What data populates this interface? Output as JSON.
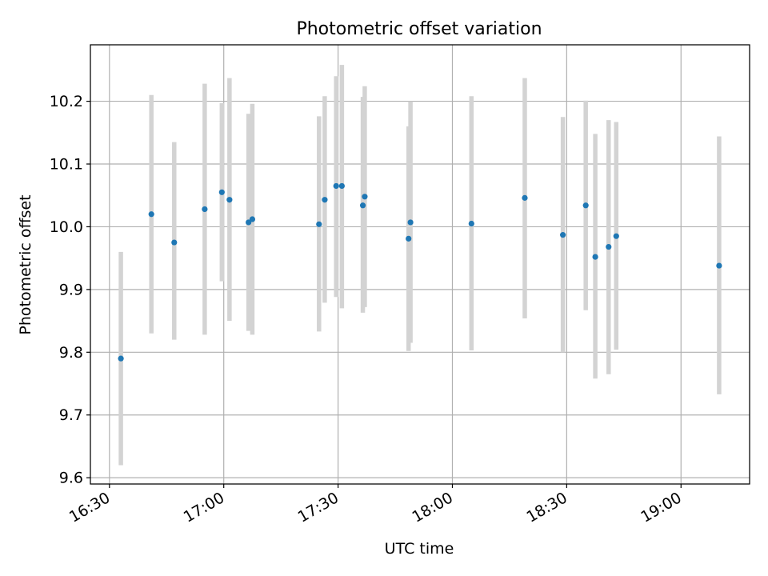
{
  "chart_data": {
    "type": "scatter",
    "title": "Photometric offset variation",
    "xlabel": "UTC time",
    "ylabel": "Photometric offset",
    "xlim": [
      "16:25",
      "19:18"
    ],
    "ylim": [
      9.59,
      10.29
    ],
    "x_ticks": [
      "16:30",
      "17:00",
      "17:30",
      "18:00",
      "18:30",
      "19:00"
    ],
    "y_ticks": [
      9.6,
      9.7,
      9.8,
      9.9,
      10.0,
      10.1,
      10.2
    ],
    "grid": true,
    "colors": {
      "point": "#1f77b4",
      "errorbar": "#d3d3d3",
      "grid": "#b0b0b0"
    },
    "series": [
      {
        "points": [
          {
            "time": "16:33",
            "y": 9.79,
            "ylow": 9.62,
            "yhigh": 9.96
          },
          {
            "time": "16:41",
            "y": 10.02,
            "ylow": 9.83,
            "yhigh": 10.21
          },
          {
            "time": "16:47",
            "y": 9.975,
            "ylow": 9.82,
            "yhigh": 10.135
          },
          {
            "time": "16:55",
            "y": 10.028,
            "ylow": 9.828,
            "yhigh": 10.228
          },
          {
            "time": "16:59:30",
            "y": 10.055,
            "ylow": 9.913,
            "yhigh": 10.197
          },
          {
            "time": "17:01:30",
            "y": 10.043,
            "ylow": 9.85,
            "yhigh": 10.237
          },
          {
            "time": "17:06:30",
            "y": 10.007,
            "ylow": 9.834,
            "yhigh": 10.18
          },
          {
            "time": "17:07:30",
            "y": 10.012,
            "ylow": 9.828,
            "yhigh": 10.196
          },
          {
            "time": "17:25",
            "y": 10.004,
            "ylow": 9.833,
            "yhigh": 10.176
          },
          {
            "time": "17:26:30",
            "y": 10.043,
            "ylow": 9.879,
            "yhigh": 10.208
          },
          {
            "time": "17:29:30",
            "y": 10.065,
            "ylow": 9.888,
            "yhigh": 10.24
          },
          {
            "time": "17:31",
            "y": 10.065,
            "ylow": 9.87,
            "yhigh": 10.258
          },
          {
            "time": "17:36:30",
            "y": 10.034,
            "ylow": 9.863,
            "yhigh": 10.207
          },
          {
            "time": "17:37",
            "y": 10.048,
            "ylow": 9.872,
            "yhigh": 10.224
          },
          {
            "time": "17:48:30",
            "y": 9.981,
            "ylow": 9.802,
            "yhigh": 10.16
          },
          {
            "time": "17:49",
            "y": 10.007,
            "ylow": 9.815,
            "yhigh": 10.2
          },
          {
            "time": "18:05",
            "y": 10.005,
            "ylow": 9.803,
            "yhigh": 10.208
          },
          {
            "time": "18:19",
            "y": 10.046,
            "ylow": 9.854,
            "yhigh": 10.237
          },
          {
            "time": "18:29",
            "y": 9.987,
            "ylow": 9.8,
            "yhigh": 10.175
          },
          {
            "time": "18:35",
            "y": 10.034,
            "ylow": 9.867,
            "yhigh": 10.201
          },
          {
            "time": "18:37:30",
            "y": 9.952,
            "ylow": 9.758,
            "yhigh": 10.148
          },
          {
            "time": "18:41",
            "y": 9.968,
            "ylow": 9.765,
            "yhigh": 10.17
          },
          {
            "time": "18:43",
            "y": 9.985,
            "ylow": 9.804,
            "yhigh": 10.167
          },
          {
            "time": "19:10",
            "y": 9.938,
            "ylow": 9.733,
            "yhigh": 10.144
          }
        ]
      }
    ]
  }
}
